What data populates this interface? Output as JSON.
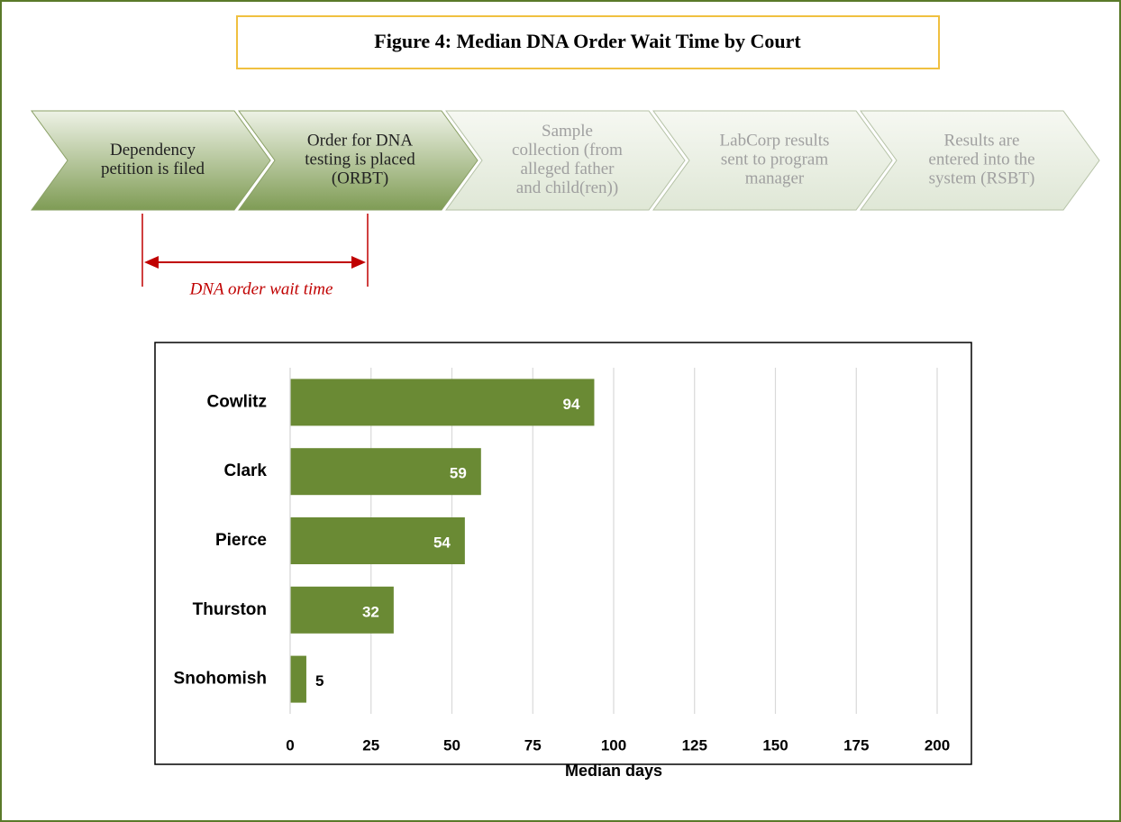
{
  "title": "Figure 4: Median DNA Order Wait Time by Court",
  "steps": [
    [
      "Dependency",
      "petition is filed"
    ],
    [
      "Order for DNA",
      "testing is placed",
      "(ORBT)"
    ],
    [
      "Sample",
      "collection (from",
      "alleged father",
      "and child(ren))"
    ],
    [
      "LabCorp results",
      "sent to program",
      "manager"
    ],
    [
      "Results are",
      "entered into the",
      "system (RSBT)"
    ]
  ],
  "annotation": "DNA order wait time",
  "chart_data": {
    "type": "bar",
    "orientation": "horizontal",
    "categories": [
      "Cowlitz",
      "Clark",
      "Pierce",
      "Thurston",
      "Snohomish"
    ],
    "values": [
      94,
      59,
      54,
      32,
      5
    ],
    "color": "#6a8a34",
    "xlabel": "Median days",
    "xlim": [
      0,
      200
    ],
    "xticks": [
      0,
      25,
      50,
      75,
      100,
      125,
      150,
      175,
      200
    ],
    "grid": true
  }
}
